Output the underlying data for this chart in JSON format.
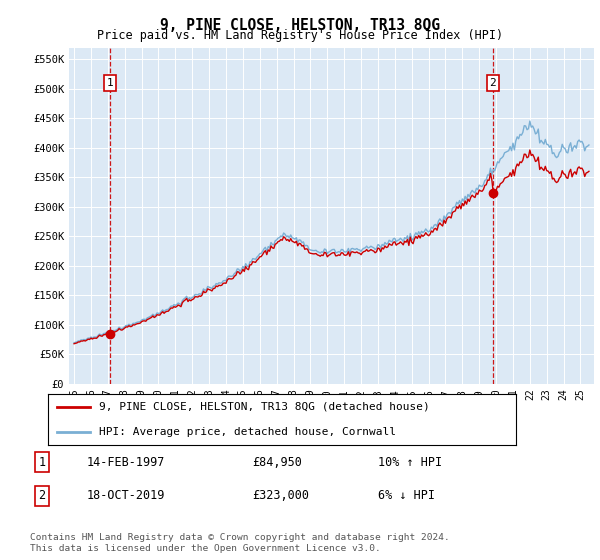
{
  "title": "9, PINE CLOSE, HELSTON, TR13 8QG",
  "subtitle": "Price paid vs. HM Land Registry's House Price Index (HPI)",
  "ylim": [
    0,
    570000
  ],
  "yticks": [
    0,
    50000,
    100000,
    150000,
    200000,
    250000,
    300000,
    350000,
    400000,
    450000,
    500000,
    550000
  ],
  "ytick_labels": [
    "£0",
    "£50K",
    "£100K",
    "£150K",
    "£200K",
    "£250K",
    "£300K",
    "£350K",
    "£400K",
    "£450K",
    "£500K",
    "£550K"
  ],
  "plot_bg_color": "#dce9f5",
  "transaction1_date": "14-FEB-1997",
  "transaction1_price": 84950,
  "transaction1_hpi": "10% ↑ HPI",
  "transaction1_year": 1997.12,
  "transaction2_date": "18-OCT-2019",
  "transaction2_price": 323000,
  "transaction2_hpi": "6% ↓ HPI",
  "transaction2_year": 2019.8,
  "legend_label1": "9, PINE CLOSE, HELSTON, TR13 8QG (detached house)",
  "legend_label2": "HPI: Average price, detached house, Cornwall",
  "footer": "Contains HM Land Registry data © Crown copyright and database right 2024.\nThis data is licensed under the Open Government Licence v3.0.",
  "line_red": "#cc0000",
  "line_blue": "#7aafd4",
  "dashed_red": "#cc0000",
  "marker_color": "#cc0000",
  "xlim_start": 1994.7,
  "xlim_end": 2025.8
}
